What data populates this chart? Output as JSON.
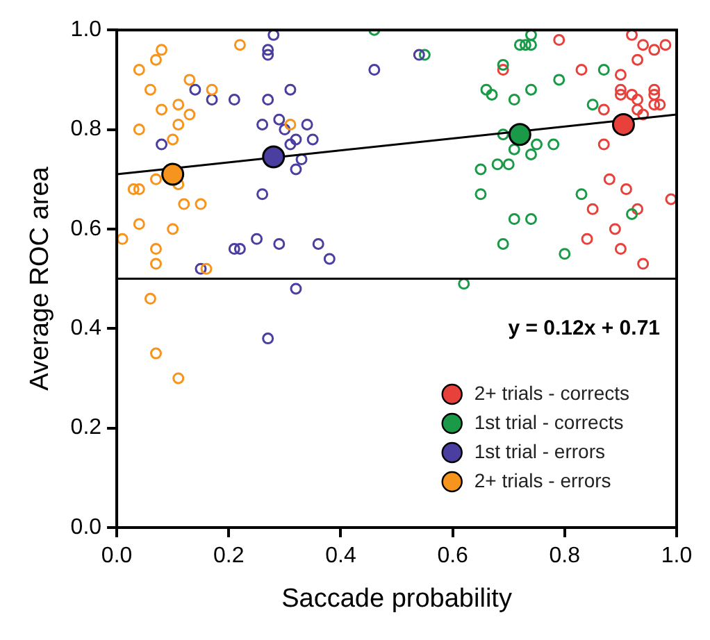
{
  "chart_data": {
    "type": "scatter",
    "xlabel": "Saccade probability",
    "ylabel": "Average ROC area",
    "xlim": [
      0,
      1
    ],
    "ylim": [
      0,
      1
    ],
    "xticks": [
      {
        "value": 0,
        "label": "0.0"
      },
      {
        "value": 0.2,
        "label": "0.2"
      },
      {
        "value": 0.4,
        "label": "0.4"
      },
      {
        "value": 0.6,
        "label": "0.6"
      },
      {
        "value": 0.8,
        "label": "0.8"
      },
      {
        "value": 1,
        "label": "1.0"
      }
    ],
    "yticks": [
      {
        "value": 0,
        "label": "0.0"
      },
      {
        "value": 0.2,
        "label": "0.2"
      },
      {
        "value": 0.4,
        "label": "0.4"
      },
      {
        "value": 0.6,
        "label": "0.6"
      },
      {
        "value": 0.8,
        "label": "0.8"
      },
      {
        "value": 1,
        "label": "1.0"
      }
    ],
    "grid": false,
    "legend": "bottom right",
    "marker": "circle",
    "annotations": [
      "y = 0.12x + 0.71"
    ],
    "ref_lines": [
      {
        "axis": "y",
        "value": 0.5,
        "color": "#000000"
      }
    ],
    "series": [
      {
        "color": "#f7941d",
        "x": [
          0.08,
          0.07,
          0.04,
          0.06,
          0.13,
          0.17,
          0.08,
          0.11,
          0.13,
          0.11,
          0.04,
          0.1,
          0.07,
          0.11,
          0.03,
          0.04,
          0.12,
          0.15,
          0.04,
          0.1,
          0.01,
          0.07,
          0.07,
          0.16,
          0.22,
          0.31,
          0.06,
          0.07,
          0.11
        ],
        "values": [
          0.96,
          0.94,
          0.92,
          0.88,
          0.9,
          0.88,
          0.84,
          0.85,
          0.83,
          0.81,
          0.8,
          0.78,
          0.7,
          0.69,
          0.68,
          0.68,
          0.65,
          0.65,
          0.61,
          0.6,
          0.58,
          0.56,
          0.53,
          0.52,
          0.97,
          0.81,
          0.46,
          0.35,
          0.3
        ]
      },
      {
        "color": "#4a3fa0",
        "x": [
          0.28,
          0.27,
          0.27,
          0.14,
          0.17,
          0.21,
          0.27,
          0.31,
          0.26,
          0.29,
          0.3,
          0.32,
          0.08,
          0.31,
          0.32,
          0.26,
          0.21,
          0.22,
          0.25,
          0.29,
          0.15,
          0.35,
          0.34,
          0.33,
          0.36,
          0.38,
          0.32,
          0.27,
          0.46,
          0.54
        ],
        "values": [
          0.99,
          0.96,
          0.95,
          0.88,
          0.86,
          0.86,
          0.86,
          0.88,
          0.81,
          0.82,
          0.8,
          0.78,
          0.77,
          0.77,
          0.72,
          0.67,
          0.56,
          0.56,
          0.58,
          0.57,
          0.52,
          0.78,
          0.81,
          0.74,
          0.57,
          0.54,
          0.48,
          0.38,
          0.92,
          0.95
        ]
      },
      {
        "color": "#1a9a48",
        "x": [
          0.46,
          0.74,
          0.72,
          0.73,
          0.74,
          0.69,
          0.87,
          0.79,
          0.66,
          0.67,
          0.71,
          0.74,
          0.85,
          0.69,
          0.71,
          0.75,
          0.74,
          0.78,
          0.65,
          0.68,
          0.7,
          0.65,
          0.83,
          0.71,
          0.74,
          0.92,
          0.69,
          0.8,
          0.62,
          0.55
        ],
        "values": [
          1.0,
          0.99,
          0.97,
          0.97,
          0.97,
          0.93,
          0.92,
          0.9,
          0.88,
          0.87,
          0.86,
          0.88,
          0.85,
          0.79,
          0.76,
          0.77,
          0.75,
          0.77,
          0.72,
          0.73,
          0.73,
          0.67,
          0.67,
          0.62,
          0.62,
          0.63,
          0.57,
          0.55,
          0.49,
          0.95
        ]
      },
      {
        "color": "#e8413c",
        "x": [
          0.79,
          0.92,
          0.94,
          0.96,
          0.98,
          0.93,
          0.69,
          0.83,
          0.9,
          0.9,
          0.92,
          0.93,
          0.9,
          0.96,
          0.96,
          0.97,
          0.96,
          0.93,
          0.94,
          0.87,
          0.87,
          0.88,
          0.91,
          0.85,
          0.93,
          0.89,
          0.84,
          0.9,
          0.94,
          0.99
        ],
        "values": [
          0.98,
          0.99,
          0.97,
          0.96,
          0.97,
          0.94,
          0.92,
          0.92,
          0.91,
          0.88,
          0.87,
          0.86,
          0.87,
          0.88,
          0.87,
          0.85,
          0.85,
          0.84,
          0.83,
          0.84,
          0.77,
          0.7,
          0.68,
          0.64,
          0.64,
          0.6,
          0.58,
          0.56,
          0.53,
          0.66
        ]
      },
      {
        "type": "line",
        "marker": "none",
        "color": "#000000",
        "x": [
          0,
          1
        ],
        "values": [
          0.71,
          0.83
        ]
      },
      {
        "name": "2+ trials - corrects",
        "color": "#e8413c",
        "x": [
          0.905
        ],
        "values": [
          0.81
        ]
      },
      {
        "name": "1st trial - corrects",
        "color": "#1a9a48",
        "x": [
          0.72
        ],
        "values": [
          0.79
        ]
      },
      {
        "name": "1st trial - errors",
        "color": "#4a3fa0",
        "x": [
          0.28
        ],
        "values": [
          0.745
        ]
      },
      {
        "name": "2+ trials - errors",
        "color": "#f7941d",
        "x": [
          0.1
        ],
        "values": [
          0.71
        ]
      }
    ]
  }
}
